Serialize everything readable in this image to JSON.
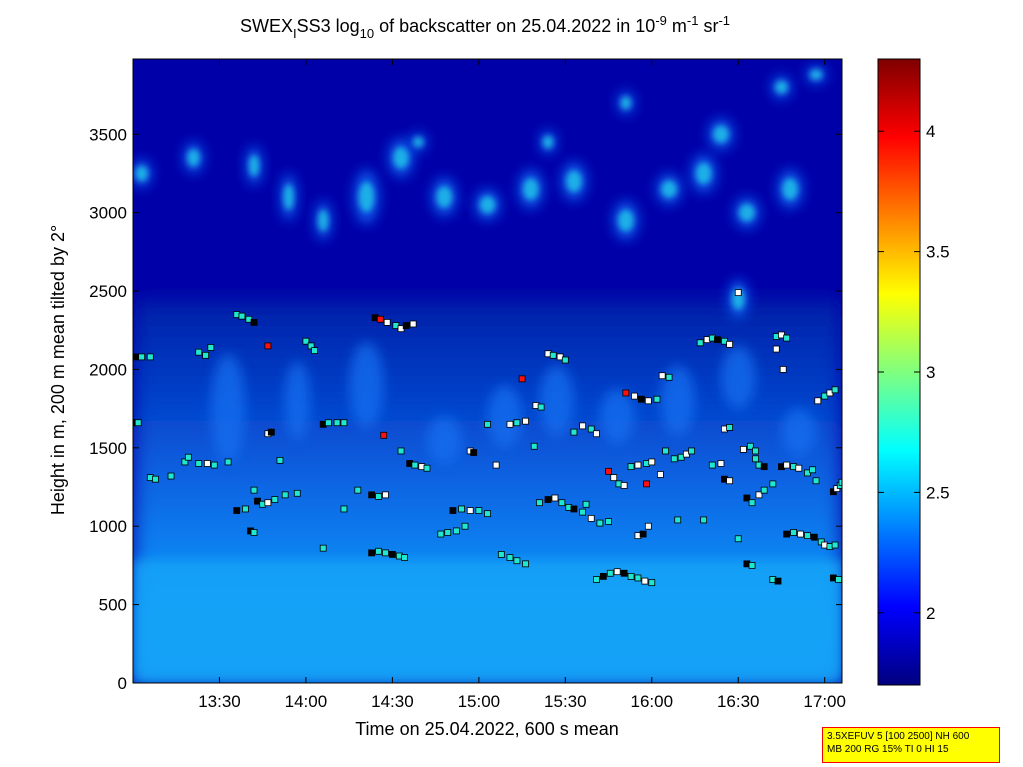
{
  "title": {
    "prefix": "SWEX",
    "sub1": "I",
    "mid": "SS3 log",
    "sub2": "10",
    "rest": " of backscatter on 25.04.2022 in 10",
    "sup1": "-9",
    "unit1": " m",
    "sup2": "-1",
    "unit2": " sr",
    "sup3": "-1"
  },
  "xlabel": "Time on 25.04.2022, 600 s mean",
  "ylabel": "Height in m, 200 m mean tilted by 2°",
  "info_box": {
    "line1": "3.5XEFUV 5 [100 2500] NH 600",
    "line2": "MB 200 RG 15% TI 0 HI 15"
  },
  "colors": {
    "background_low": "#00007f",
    "dark_blue": "#0000a8",
    "layer_blue": "#0a60e8",
    "light_blue": "#10a0f8",
    "cyan": "#20e0e0",
    "marker_black": "#000000",
    "marker_white": "#ffffff",
    "marker_cyan": "#20e8d0",
    "marker_red": "#ff1010"
  },
  "chart_data": {
    "type": "heatmap",
    "x_axis": {
      "range_hours": [
        13.0,
        17.1
      ],
      "ticks": [
        {
          "value": 13.5,
          "label": "13:30"
        },
        {
          "value": 14.0,
          "label": "14:00"
        },
        {
          "value": 14.5,
          "label": "14:30"
        },
        {
          "value": 15.0,
          "label": "15:00"
        },
        {
          "value": 15.5,
          "label": "15:30"
        },
        {
          "value": 16.0,
          "label": "16:00"
        },
        {
          "value": 16.5,
          "label": "16:30"
        },
        {
          "value": 17.0,
          "label": "17:00"
        }
      ]
    },
    "y_axis": {
      "range": [
        0,
        3980
      ],
      "ticks": [
        0,
        500,
        1000,
        1500,
        2000,
        2500,
        3000,
        3500
      ]
    },
    "colorbar": {
      "range": [
        1.7,
        4.3
      ],
      "ticks": [
        {
          "value": 2,
          "label": "2"
        },
        {
          "value": 2.5,
          "label": "2.5"
        },
        {
          "value": 3,
          "label": "3"
        },
        {
          "value": 3.5,
          "label": "3.5"
        },
        {
          "value": 4,
          "label": "4"
        }
      ]
    },
    "upper_cloud_patches": [
      [
        13.05,
        3250,
        0.12,
        180
      ],
      [
        13.35,
        3350,
        0.12,
        200
      ],
      [
        13.7,
        3300,
        0.1,
        250
      ],
      [
        13.9,
        3100,
        0.1,
        300
      ],
      [
        14.1,
        2950,
        0.1,
        250
      ],
      [
        14.35,
        3100,
        0.15,
        350
      ],
      [
        14.55,
        3350,
        0.15,
        250
      ],
      [
        14.8,
        3100,
        0.15,
        250
      ],
      [
        15.05,
        3050,
        0.15,
        200
      ],
      [
        15.3,
        3150,
        0.15,
        250
      ],
      [
        15.55,
        3200,
        0.15,
        250
      ],
      [
        15.85,
        2950,
        0.15,
        250
      ],
      [
        16.1,
        3150,
        0.15,
        200
      ],
      [
        16.3,
        3250,
        0.15,
        250
      ],
      [
        16.55,
        3000,
        0.15,
        200
      ],
      [
        16.8,
        3150,
        0.15,
        250
      ],
      [
        15.85,
        3700,
        0.1,
        150
      ],
      [
        16.4,
        3500,
        0.15,
        200
      ],
      [
        16.75,
        3800,
        0.12,
        150
      ],
      [
        16.95,
        3880,
        0.12,
        120
      ],
      [
        16.5,
        2450,
        0.12,
        250
      ],
      [
        15.4,
        3450,
        0.1,
        150
      ],
      [
        14.65,
        3450,
        0.1,
        120
      ]
    ],
    "plumes": [
      [
        13.55,
        1750,
        0.2,
        700
      ],
      [
        13.95,
        1800,
        0.15,
        500
      ],
      [
        14.35,
        1900,
        0.2,
        550
      ],
      [
        14.8,
        1550,
        0.2,
        300
      ],
      [
        15.15,
        1700,
        0.2,
        400
      ],
      [
        15.45,
        1800,
        0.2,
        450
      ],
      [
        15.8,
        1700,
        0.2,
        350
      ],
      [
        16.15,
        1800,
        0.2,
        450
      ],
      [
        16.5,
        1950,
        0.2,
        400
      ],
      [
        16.85,
        1600,
        0.2,
        300
      ]
    ],
    "markers": [
      [
        13.02,
        2080,
        "b"
      ],
      [
        13.05,
        2080,
        "c"
      ],
      [
        13.1,
        2080,
        "c"
      ],
      [
        13.0,
        1660,
        "b"
      ],
      [
        13.03,
        1660,
        "c"
      ],
      [
        13.1,
        1310,
        "c"
      ],
      [
        13.13,
        1300,
        "c"
      ],
      [
        13.22,
        1320,
        "c"
      ],
      [
        13.3,
        1410,
        "c"
      ],
      [
        13.32,
        1440,
        "c"
      ],
      [
        13.38,
        2110,
        "c"
      ],
      [
        13.42,
        2090,
        "c"
      ],
      [
        13.38,
        1400,
        "c"
      ],
      [
        13.43,
        1400,
        "w"
      ],
      [
        13.47,
        1390,
        "c"
      ],
      [
        13.55,
        1410,
        "c"
      ],
      [
        13.6,
        2350,
        "c"
      ],
      [
        13.63,
        2340,
        "c"
      ],
      [
        13.67,
        2320,
        "c"
      ],
      [
        13.7,
        2300,
        "b"
      ],
      [
        13.78,
        2150,
        "r"
      ],
      [
        13.78,
        1590,
        "w"
      ],
      [
        13.8,
        1600,
        "b"
      ],
      [
        13.7,
        1230,
        "c"
      ],
      [
        13.72,
        1160,
        "b"
      ],
      [
        13.75,
        1140,
        "c"
      ],
      [
        13.78,
        1150,
        "w"
      ],
      [
        13.82,
        1170,
        "c"
      ],
      [
        13.88,
        1200,
        "c"
      ],
      [
        13.95,
        1210,
        "c"
      ],
      [
        13.68,
        970,
        "b"
      ],
      [
        13.7,
        960,
        "c"
      ],
      [
        13.6,
        1100,
        "b"
      ],
      [
        13.65,
        1110,
        "c"
      ],
      [
        14.0,
        2180,
        "c"
      ],
      [
        14.03,
        2150,
        "c"
      ],
      [
        14.05,
        2120,
        "c"
      ],
      [
        14.1,
        1650,
        "b"
      ],
      [
        14.13,
        1660,
        "c"
      ],
      [
        14.18,
        1660,
        "c"
      ],
      [
        14.22,
        1660,
        "c"
      ],
      [
        14.1,
        860,
        "c"
      ],
      [
        14.22,
        1110,
        "c"
      ],
      [
        14.3,
        1230,
        "c"
      ],
      [
        14.4,
        2330,
        "b"
      ],
      [
        14.43,
        2320,
        "r"
      ],
      [
        14.47,
        2300,
        "w"
      ],
      [
        14.52,
        2280,
        "c"
      ],
      [
        14.55,
        2260,
        "w"
      ],
      [
        14.58,
        2280,
        "b"
      ],
      [
        14.62,
        2290,
        "w"
      ],
      [
        14.45,
        1580,
        "r"
      ],
      [
        14.38,
        1200,
        "b"
      ],
      [
        14.42,
        1190,
        "c"
      ],
      [
        14.46,
        1200,
        "w"
      ],
      [
        14.38,
        830,
        "b"
      ],
      [
        14.42,
        840,
        "c"
      ],
      [
        14.46,
        830,
        "c"
      ],
      [
        14.5,
        820,
        "b"
      ],
      [
        14.54,
        810,
        "c"
      ],
      [
        14.57,
        800,
        "c"
      ],
      [
        14.6,
        1400,
        "b"
      ],
      [
        14.63,
        1390,
        "c"
      ],
      [
        14.67,
        1380,
        "w"
      ],
      [
        14.7,
        1370,
        "c"
      ],
      [
        14.78,
        950,
        "c"
      ],
      [
        14.82,
        960,
        "c"
      ],
      [
        14.87,
        970,
        "c"
      ],
      [
        14.92,
        1000,
        "c"
      ],
      [
        14.85,
        1100,
        "b"
      ],
      [
        14.9,
        1110,
        "c"
      ],
      [
        14.95,
        1100,
        "w"
      ],
      [
        15.0,
        1100,
        "c"
      ],
      [
        15.05,
        1080,
        "c"
      ],
      [
        14.95,
        1480,
        "w"
      ],
      [
        14.97,
        1470,
        "b"
      ],
      [
        15.1,
        1390,
        "w"
      ],
      [
        15.13,
        820,
        "c"
      ],
      [
        15.18,
        800,
        "c"
      ],
      [
        15.22,
        780,
        "c"
      ],
      [
        15.27,
        760,
        "c"
      ],
      [
        15.18,
        1650,
        "w"
      ],
      [
        15.22,
        1660,
        "c"
      ],
      [
        15.27,
        1670,
        "w"
      ],
      [
        15.25,
        1940,
        "r"
      ],
      [
        15.33,
        1770,
        "w"
      ],
      [
        15.36,
        1760,
        "c"
      ],
      [
        15.4,
        2100,
        "w"
      ],
      [
        15.43,
        2090,
        "c"
      ],
      [
        15.47,
        2080,
        "w"
      ],
      [
        15.5,
        2060,
        "c"
      ],
      [
        15.35,
        1150,
        "c"
      ],
      [
        15.4,
        1170,
        "b"
      ],
      [
        15.44,
        1180,
        "w"
      ],
      [
        15.48,
        1150,
        "c"
      ],
      [
        15.52,
        1120,
        "c"
      ],
      [
        15.55,
        1600,
        "c"
      ],
      [
        15.6,
        1640,
        "w"
      ],
      [
        15.65,
        1620,
        "c"
      ],
      [
        15.68,
        1590,
        "w"
      ],
      [
        15.55,
        1110,
        "b"
      ],
      [
        15.6,
        1090,
        "c"
      ],
      [
        15.65,
        1050,
        "w"
      ],
      [
        15.7,
        1020,
        "c"
      ],
      [
        15.75,
        1030,
        "c"
      ],
      [
        15.68,
        660,
        "c"
      ],
      [
        15.72,
        680,
        "b"
      ],
      [
        15.76,
        700,
        "c"
      ],
      [
        15.8,
        710,
        "w"
      ],
      [
        15.84,
        700,
        "b"
      ],
      [
        15.88,
        680,
        "c"
      ],
      [
        15.92,
        670,
        "c"
      ],
      [
        15.96,
        650,
        "w"
      ],
      [
        16.0,
        640,
        "c"
      ],
      [
        15.75,
        1350,
        "r"
      ],
      [
        15.78,
        1310,
        "w"
      ],
      [
        15.81,
        1270,
        "c"
      ],
      [
        15.84,
        1260,
        "w"
      ],
      [
        15.88,
        1380,
        "c"
      ],
      [
        15.92,
        1390,
        "w"
      ],
      [
        15.97,
        1400,
        "c"
      ],
      [
        16.0,
        1410,
        "w"
      ],
      [
        15.85,
        1850,
        "r"
      ],
      [
        15.9,
        1830,
        "w"
      ],
      [
        15.94,
        1810,
        "b"
      ],
      [
        15.98,
        1800,
        "w"
      ],
      [
        16.03,
        1810,
        "c"
      ],
      [
        16.06,
        1960,
        "w"
      ],
      [
        16.1,
        1950,
        "c"
      ],
      [
        15.97,
        1270,
        "r"
      ],
      [
        16.05,
        1330,
        "w"
      ],
      [
        15.92,
        940,
        "w"
      ],
      [
        15.95,
        950,
        "b"
      ],
      [
        15.98,
        1000,
        "w"
      ],
      [
        16.13,
        1430,
        "c"
      ],
      [
        16.17,
        1440,
        "c"
      ],
      [
        16.2,
        1460,
        "w"
      ],
      [
        16.23,
        1480,
        "c"
      ],
      [
        16.28,
        2170,
        "c"
      ],
      [
        16.32,
        2190,
        "w"
      ],
      [
        16.35,
        2200,
        "c"
      ],
      [
        16.38,
        2190,
        "b"
      ],
      [
        16.42,
        2180,
        "c"
      ],
      [
        16.45,
        2160,
        "w"
      ],
      [
        16.35,
        1390,
        "c"
      ],
      [
        16.4,
        1400,
        "w"
      ],
      [
        16.42,
        1620,
        "w"
      ],
      [
        16.45,
        1630,
        "c"
      ],
      [
        16.5,
        2490,
        "w"
      ],
      [
        16.3,
        1040,
        "c"
      ],
      [
        16.42,
        1300,
        "b"
      ],
      [
        16.45,
        1290,
        "w"
      ],
      [
        16.5,
        920,
        "c"
      ],
      [
        16.53,
        1490,
        "w"
      ],
      [
        16.57,
        1510,
        "c"
      ],
      [
        16.6,
        1480,
        "c"
      ],
      [
        16.55,
        1180,
        "b"
      ],
      [
        16.58,
        1150,
        "c"
      ],
      [
        16.62,
        1200,
        "w"
      ],
      [
        16.65,
        1230,
        "c"
      ],
      [
        16.55,
        760,
        "b"
      ],
      [
        16.58,
        750,
        "c"
      ],
      [
        16.62,
        1390,
        "c"
      ],
      [
        16.65,
        1380,
        "b"
      ],
      [
        16.72,
        2210,
        "c"
      ],
      [
        16.75,
        2220,
        "w"
      ],
      [
        16.78,
        2200,
        "c"
      ],
      [
        16.72,
        2130,
        "w"
      ],
      [
        16.76,
        2000,
        "w"
      ],
      [
        16.7,
        1270,
        "c"
      ],
      [
        16.75,
        1380,
        "b"
      ],
      [
        16.78,
        1390,
        "w"
      ],
      [
        16.82,
        1380,
        "c"
      ],
      [
        16.85,
        1370,
        "w"
      ],
      [
        16.7,
        660,
        "c"
      ],
      [
        16.73,
        650,
        "b"
      ],
      [
        16.78,
        950,
        "b"
      ],
      [
        16.82,
        960,
        "c"
      ],
      [
        16.86,
        950,
        "w"
      ],
      [
        16.9,
        940,
        "c"
      ],
      [
        16.94,
        930,
        "b"
      ],
      [
        16.98,
        900,
        "c"
      ],
      [
        17.0,
        880,
        "w"
      ],
      [
        17.03,
        870,
        "c"
      ],
      [
        17.06,
        880,
        "c"
      ],
      [
        16.9,
        1340,
        "c"
      ],
      [
        16.93,
        1360,
        "c"
      ],
      [
        16.96,
        1800,
        "w"
      ],
      [
        17.0,
        1830,
        "c"
      ],
      [
        17.03,
        1850,
        "w"
      ],
      [
        17.06,
        1870,
        "c"
      ],
      [
        17.05,
        1220,
        "b"
      ],
      [
        17.07,
        1240,
        "w"
      ],
      [
        17.09,
        1260,
        "c"
      ],
      [
        17.1,
        1280,
        "c"
      ],
      [
        17.05,
        670,
        "b"
      ],
      [
        17.08,
        660,
        "c"
      ],
      [
        17.12,
        670,
        "c"
      ],
      [
        17.15,
        680,
        "c"
      ],
      [
        17.18,
        1140,
        "w"
      ],
      [
        16.08,
        1480,
        "c"
      ],
      [
        15.32,
        1510,
        "c"
      ],
      [
        14.55,
        1480,
        "c"
      ],
      [
        13.85,
        1420,
        "c"
      ],
      [
        16.6,
        1430,
        "c"
      ],
      [
        16.95,
        1290,
        "c"
      ],
      [
        15.05,
        1650,
        "c"
      ],
      [
        15.62,
        1140,
        "c"
      ],
      [
        16.15,
        1040,
        "c"
      ],
      [
        13.45,
        2140,
        "c"
      ]
    ]
  }
}
